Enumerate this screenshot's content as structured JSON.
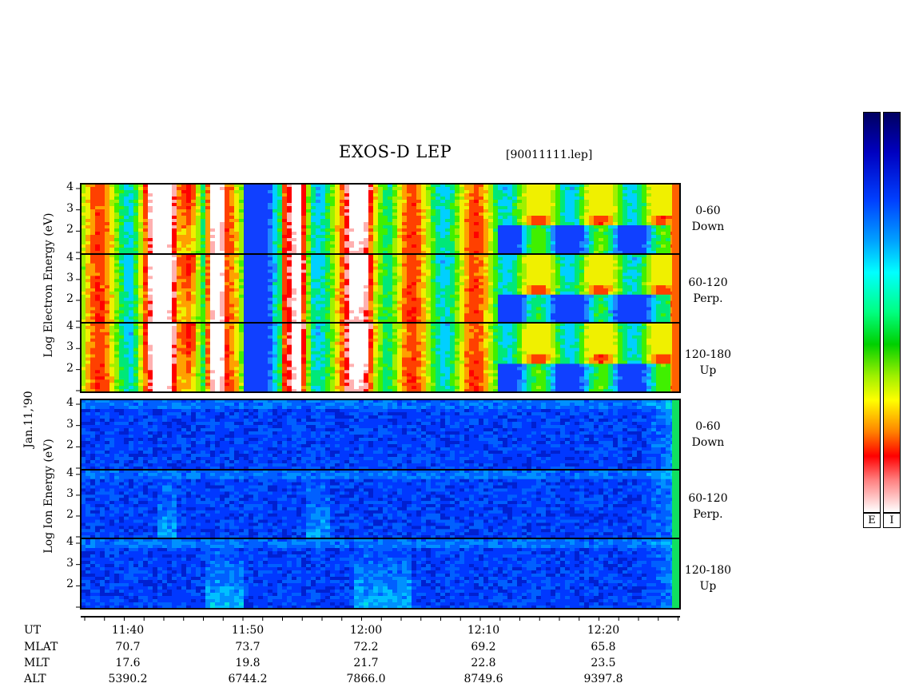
{
  "header": {
    "title": "EXOS-D LEP",
    "filename": "[90011111.lep]"
  },
  "date_label": "Jan.11,'90",
  "electron_axis": {
    "line1": "Log  Electron  Energy (eV)"
  },
  "ion_axis": {
    "line1": "Log  Ion  Energy (eV)"
  },
  "channels": [
    {
      "range": "0-60",
      "dir": "Down"
    },
    {
      "range": "60-120",
      "dir": "Perp."
    },
    {
      "range": "120-180",
      "dir": "Up"
    },
    {
      "range": "0-60",
      "dir": "Down"
    },
    {
      "range": "60-120",
      "dir": "Perp."
    },
    {
      "range": "120-180",
      "dir": "Up"
    }
  ],
  "ytick_labels": [
    "4",
    "3",
    "2"
  ],
  "table": {
    "row_labels": [
      "UT",
      "MLAT",
      "MLT",
      "ALT"
    ],
    "columns": [
      {
        "ut": "11:40",
        "mlat": "70.7",
        "mlt": "17.6",
        "alt": "5390.2"
      },
      {
        "ut": "11:50",
        "mlat": "73.7",
        "mlt": "19.8",
        "alt": "6744.2"
      },
      {
        "ut": "12:00",
        "mlat": "72.2",
        "mlt": "21.7",
        "alt": "7866.0"
      },
      {
        "ut": "12:10",
        "mlat": "69.2",
        "mlt": "22.8",
        "alt": "8749.6"
      },
      {
        "ut": "12:20",
        "mlat": "65.8",
        "mlt": "23.5",
        "alt": "9397.8"
      }
    ]
  },
  "colorbar": {
    "e_label": "E",
    "i_label": "I"
  },
  "chart_data": {
    "type": "heatmap",
    "title": "EXOS-D LEP",
    "xlabel": "UT",
    "ylabel": "Log Energy (eV)",
    "x_ticks": [
      "11:40",
      "11:50",
      "12:00",
      "12:10",
      "12:20"
    ],
    "ylim": [
      1,
      4
    ],
    "y_ticks": [
      2,
      3,
      4
    ],
    "panels": [
      {
        "species": "Electron",
        "pitch": "0-60",
        "dir": "Down"
      },
      {
        "species": "Electron",
        "pitch": "60-120",
        "dir": "Perp."
      },
      {
        "species": "Electron",
        "pitch": "120-180",
        "dir": "Up"
      },
      {
        "species": "Ion",
        "pitch": "0-60",
        "dir": "Down"
      },
      {
        "species": "Ion",
        "pitch": "60-120",
        "dir": "Perp."
      },
      {
        "species": "Ion",
        "pitch": "120-180",
        "dir": "Up"
      }
    ],
    "colors": {
      "high": "#ffffff",
      "mid": "#ff0000",
      "low": "#000080"
    }
  }
}
